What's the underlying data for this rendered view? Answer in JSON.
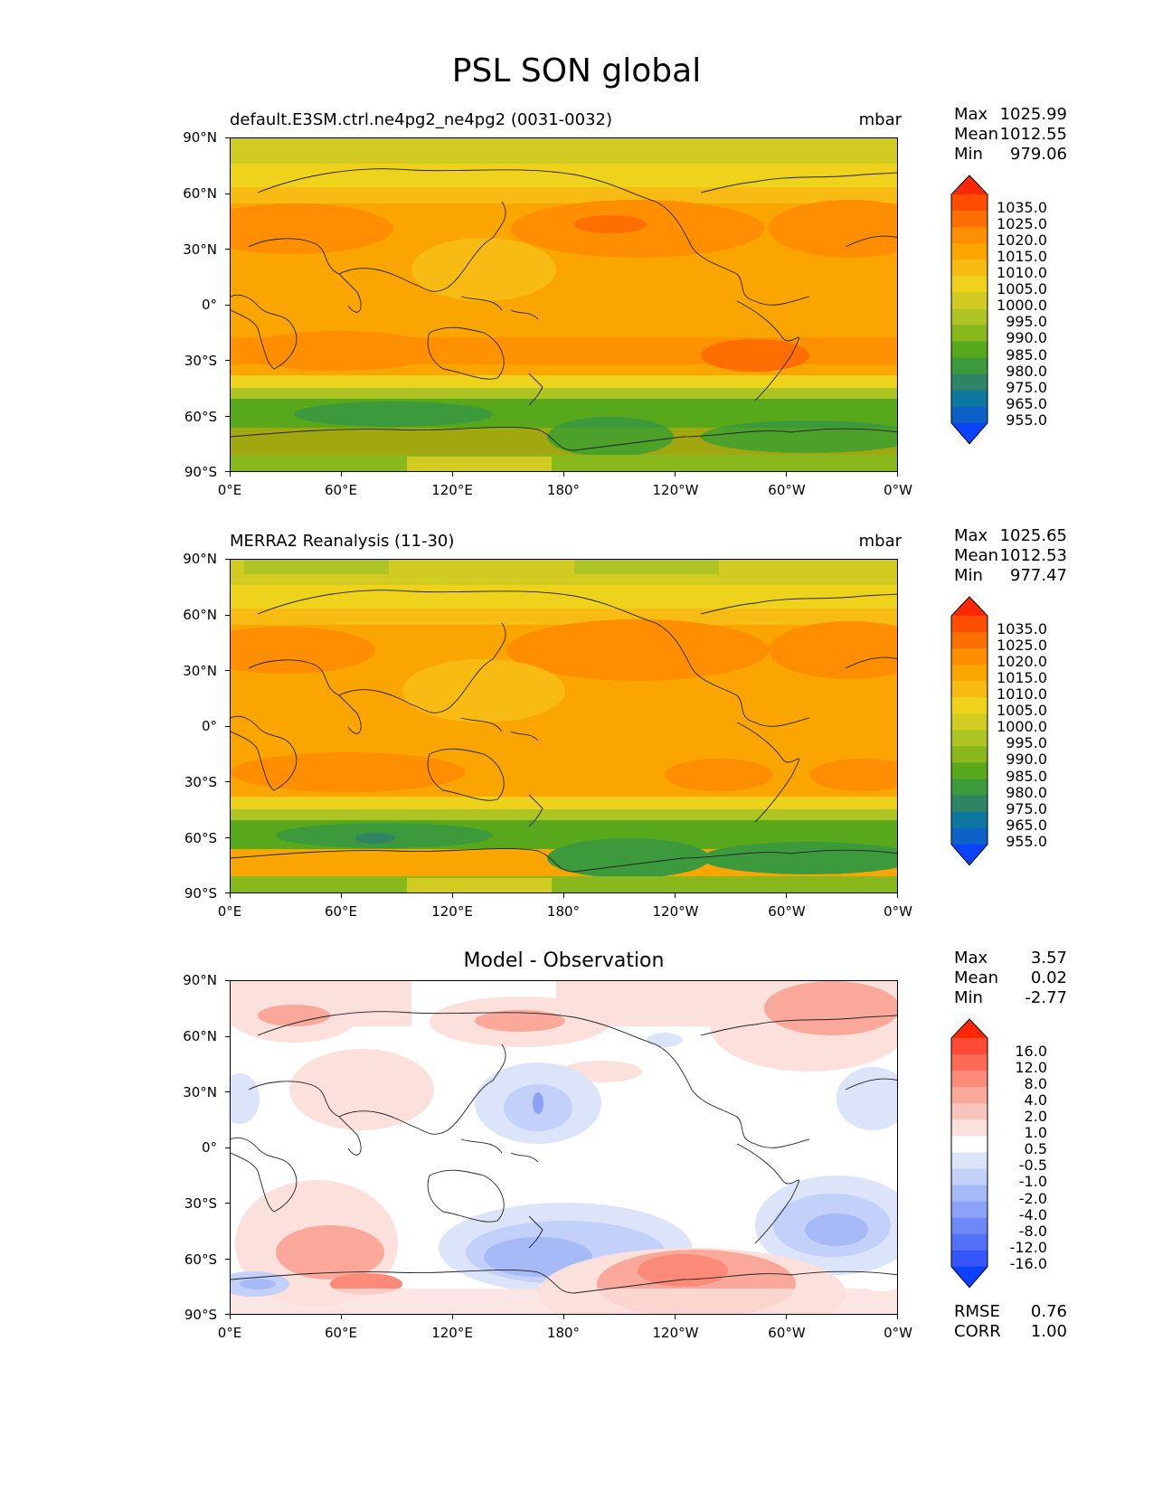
{
  "figure_title": "PSL SON global",
  "panels": [
    {
      "id": "model",
      "title_left": "default.E3SM.ctrl.ne4pg2_ne4pg2 (0031-0032)",
      "title_center": "",
      "units": "mbar",
      "stats": [
        {
          "label": "Max",
          "value": "1025.99"
        },
        {
          "label": "Mean",
          "value": "1012.55"
        },
        {
          "label": "Min",
          "value": "979.06"
        }
      ]
    },
    {
      "id": "obs",
      "title_left": "MERRA2 Reanalysis (11-30)",
      "title_center": "",
      "units": "mbar",
      "stats": [
        {
          "label": "Max",
          "value": "1025.65"
        },
        {
          "label": "Mean",
          "value": "1012.53"
        },
        {
          "label": "Min",
          "value": "977.47"
        }
      ]
    },
    {
      "id": "diff",
      "title_left": "",
      "title_center": "Model - Observation",
      "units": "",
      "stats": [
        {
          "label": "Max",
          "value": "3.57"
        },
        {
          "label": "Mean",
          "value": "0.02"
        },
        {
          "label": "Min",
          "value": "-2.77"
        }
      ],
      "extra_stats": [
        {
          "label": "RMSE",
          "value": "0.76"
        },
        {
          "label": "CORR",
          "value": "1.00"
        }
      ]
    }
  ],
  "lat_ticks": [
    "90°N",
    "60°N",
    "30°N",
    "0°",
    "30°S",
    "60°S",
    "90°S"
  ],
  "lon_ticks": [
    "0°E",
    "60°E",
    "120°E",
    "180°",
    "120°W",
    "60°W",
    "0°W"
  ],
  "colorbars": {
    "field": {
      "labels": [
        "1035.0",
        "1025.0",
        "1020.0",
        "1015.0",
        "1010.0",
        "1005.0",
        "1000.0",
        "995.0",
        "990.0",
        "985.0",
        "980.0",
        "975.0",
        "965.0",
        "955.0"
      ],
      "colors": [
        "#ff2800",
        "#ff4e00",
        "#ff6e00",
        "#ff8e00",
        "#fba600",
        "#f7bb14",
        "#eed21c",
        "#d2cc22",
        "#aec424",
        "#88b81c",
        "#58a81c",
        "#3c9a3c",
        "#2e8464",
        "#0c78a0",
        "#0c60c8",
        "#0a42ff"
      ]
    },
    "diff": {
      "labels": [
        "16.0",
        "12.0",
        "8.0",
        "4.0",
        "2.0",
        "1.0",
        "0.5",
        "-0.5",
        "-1.0",
        "-2.0",
        "-4.0",
        "-8.0",
        "-12.0",
        "-16.0"
      ],
      "colors": [
        "#ff2800",
        "#fe4a36",
        "#fd6a56",
        "#fb8a78",
        "#f9a89a",
        "#f7c4bc",
        "#fbe0dc",
        "#ffffff",
        "#dce4fa",
        "#c2d0fa",
        "#a6baf8",
        "#8ca2f8",
        "#6e88f8",
        "#5470f8",
        "#3656fa",
        "#0a42ff"
      ]
    }
  }
}
